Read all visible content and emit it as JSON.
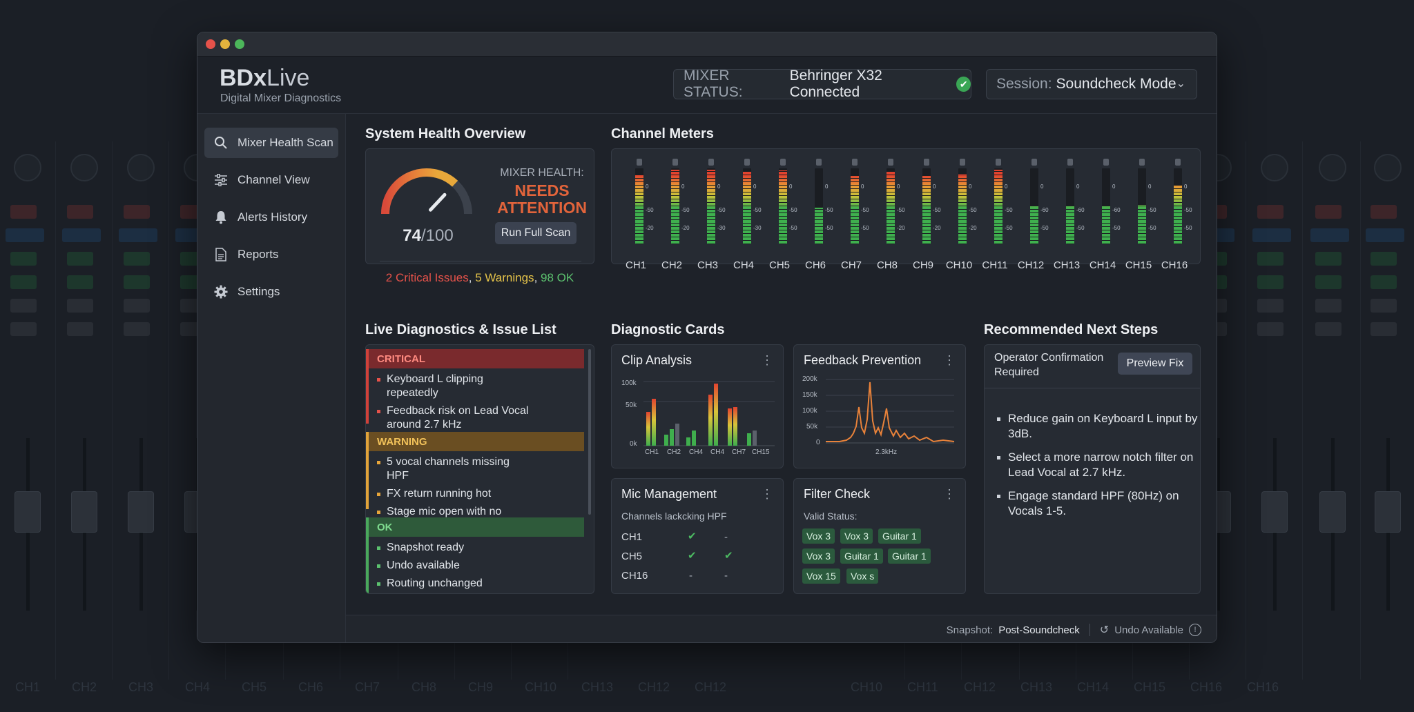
{
  "app": {
    "brand_bold": "BDx",
    "brand_light": "Live",
    "subtitle": "Digital Mixer Diagnostics"
  },
  "header": {
    "mixer_status_key": "MIXER STATUS:",
    "mixer_status_value": "Behringer X32 Connected",
    "session_key": "Session:",
    "session_value": "Soundcheck Mode"
  },
  "sidebar": {
    "items": [
      {
        "label": "Mixer Health Scan",
        "icon": "search-icon",
        "active": true
      },
      {
        "label": "Channel View",
        "icon": "sliders-icon",
        "active": false
      },
      {
        "label": "Alerts History",
        "icon": "bell-icon",
        "active": false
      },
      {
        "label": "Reports",
        "icon": "document-icon",
        "active": false
      },
      {
        "label": "Settings",
        "icon": "gear-icon",
        "active": false
      }
    ]
  },
  "health": {
    "title": "System Health Overview",
    "label": "MIXER HEALTH:",
    "state_line1": "NEEDS",
    "state_line2": "ATTENTION",
    "score": "74",
    "score_max": "/100",
    "score_value": 74,
    "run_button": "Run Full Scan",
    "critical": "2 Critical Issues",
    "warnings": "5 Warnings",
    "ok": "98 OK",
    "sep1": ", ",
    "sep2": ", ",
    "colors": {
      "critical": "#e5524a",
      "warning": "#e7c54a",
      "ok": "#5cc26f"
    }
  },
  "meters": {
    "title": "Channel Meters",
    "channels": [
      {
        "label": "CH1",
        "level": 0.92,
        "scale": [
          "0",
          "-50",
          "-20"
        ]
      },
      {
        "label": "CH2",
        "level": 0.98,
        "scale": [
          "0",
          "-50",
          "-20"
        ]
      },
      {
        "label": "CH3",
        "level": 0.98,
        "scale": [
          "0",
          "-50",
          "-30"
        ]
      },
      {
        "label": "CH4",
        "level": 0.96,
        "scale": [
          "0",
          "-50",
          "-30"
        ]
      },
      {
        "label": "CH5",
        "level": 0.97,
        "scale": [
          "0",
          "-50",
          "-50"
        ]
      },
      {
        "label": "CH6",
        "level": 0.48,
        "scale": [
          "0",
          "-50",
          "-50"
        ]
      },
      {
        "label": "CH7",
        "level": 0.9,
        "scale": [
          "0",
          "-50",
          "-50"
        ]
      },
      {
        "label": "CH8",
        "level": 0.96,
        "scale": [
          "0",
          "-50",
          "-20"
        ]
      },
      {
        "label": "CH9",
        "level": 0.9,
        "scale": [
          "0",
          "-50",
          "-20"
        ]
      },
      {
        "label": "CH10",
        "level": 0.93,
        "scale": [
          "0",
          "-50",
          "-20"
        ]
      },
      {
        "label": "CH11",
        "level": 0.98,
        "scale": [
          "0",
          "-50",
          "-50"
        ]
      },
      {
        "label": "CH12",
        "level": 0.5,
        "scale": [
          "0",
          "-60",
          "-50"
        ]
      },
      {
        "label": "CH13",
        "level": 0.5,
        "scale": [
          "0",
          "-60",
          "-50"
        ]
      },
      {
        "label": "CH14",
        "level": 0.5,
        "scale": [
          "0",
          "-60",
          "-50"
        ]
      },
      {
        "label": "CH15",
        "level": 0.52,
        "scale": [
          "0",
          "-50",
          "-50"
        ]
      },
      {
        "label": "CH16",
        "level": 0.78,
        "scale": [
          "0",
          "-50",
          "-50"
        ]
      }
    ]
  },
  "issues": {
    "title": "Live Diagnostics & Issue List",
    "critical_label": "CRITICAL",
    "critical_items": [
      "Keyboard L clipping repeatedly",
      "Feedback risk on Lead Vocal around 2.7 kHz"
    ],
    "warning_label": "WARNING",
    "warning_items": [
      "5 vocal channels missing HPF",
      "FX return running hot",
      "Stage mic open with no useful signal"
    ],
    "ok_label": "OK",
    "ok_items": [
      "Snapshot ready",
      "Undo available",
      "Routing unchanged"
    ]
  },
  "cards": {
    "title": "Diagnostic Cards",
    "clip": {
      "title": "Clip Analysis",
      "y_ticks": [
        "100k",
        "50k",
        "0k"
      ],
      "x_labels": [
        "CH1",
        "CH2",
        "CH4",
        "CH4",
        "CH7",
        "CH15"
      ]
    },
    "feedback": {
      "title": "Feedback Prevention",
      "y_ticks": [
        "200k",
        "150k",
        "100k",
        "50k",
        "0"
      ],
      "x_label": "2.3kHz"
    },
    "mic": {
      "title": "Mic Management",
      "subtitle": "Channels lackcking HPF",
      "rows": [
        {
          "ch": "CH1",
          "a": "check",
          "b": "-"
        },
        {
          "ch": "CH5",
          "a": "check",
          "b": "check"
        },
        {
          "ch": "CH16",
          "a": "-",
          "b": "-"
        }
      ]
    },
    "filter": {
      "title": "Filter Check",
      "subtitle": "Valid Status:",
      "chips": [
        "Vox 3",
        "Vox 3",
        "Guitar 1",
        "Vox 3",
        "Guitar 1",
        "Guitar 1",
        "Vox 15",
        "Vox s"
      ]
    }
  },
  "next_steps": {
    "title": "Recommended Next Steps",
    "confirm": "Operator Confirmation Required",
    "preview_button": "Preview Fix",
    "steps": [
      "Reduce gain on Keyboard L input by 3dB.",
      "Select a more narrow notch filter on Lead Vocal at 2.7 kHz.",
      "Engage standard HPF (80Hz) on Vocals 1-5."
    ]
  },
  "footer": {
    "snapshot_key": "Snapshot:",
    "snapshot_value": "Post-Soundcheck",
    "undo": "Undo Available"
  },
  "background_labels": [
    "CH1",
    "CH2",
    "CH3",
    "CH4",
    "CH5",
    "CH6",
    "CH7",
    "CH8",
    "CH9",
    "CH10",
    "CH13",
    "CH12",
    "CH12",
    "CH10",
    "CH11",
    "CH12",
    "CH13",
    "CH14",
    "CH15",
    "CH16",
    "CH16"
  ]
}
